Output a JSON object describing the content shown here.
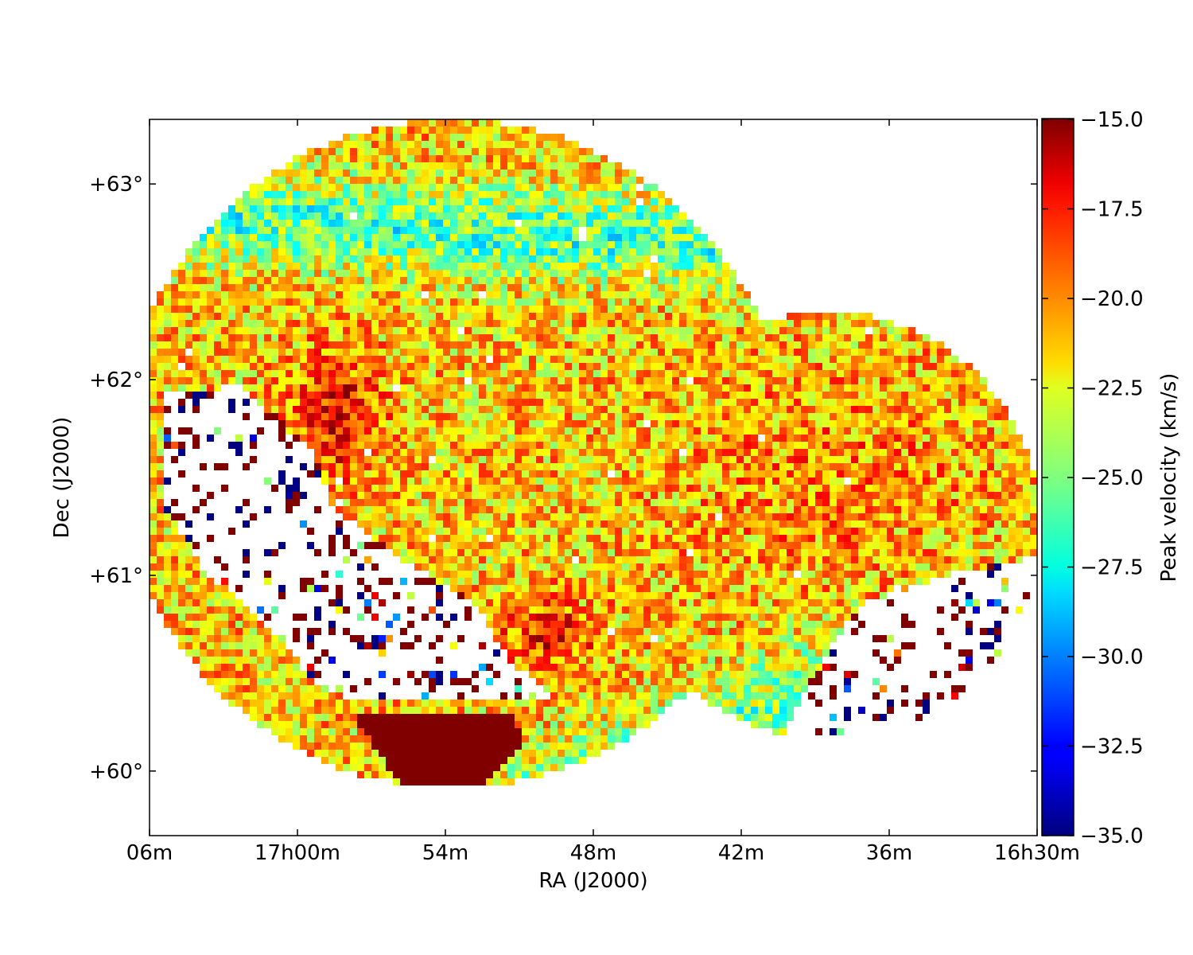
{
  "chart_data": {
    "type": "heatmap",
    "title": "",
    "xlabel": "RA (J2000)",
    "ylabel": "Dec (J2000)",
    "x_ticks": [
      "06m",
      "17h00m",
      "54m",
      "48m",
      "42m",
      "36m",
      "16h30m"
    ],
    "y_ticks": [
      "+60°",
      "+61°",
      "+62°",
      "+63°"
    ],
    "y_tick_values": [
      60,
      61,
      62,
      63
    ],
    "ylim": [
      59.67,
      63.33
    ],
    "colorbar": {
      "label": "Peak velocity (km/s)",
      "ticks": [
        "−15.0",
        "−17.5",
        "−20.0",
        "−22.5",
        "−25.0",
        "−27.5",
        "−30.0",
        "−32.5",
        "−35.0"
      ],
      "tick_values": [
        -15,
        -17.5,
        -20,
        -22.5,
        -25,
        -27.5,
        -30,
        -32.5,
        -35
      ],
      "range": [
        -35,
        -15
      ],
      "colormap": "jet"
    },
    "grid": false
  }
}
